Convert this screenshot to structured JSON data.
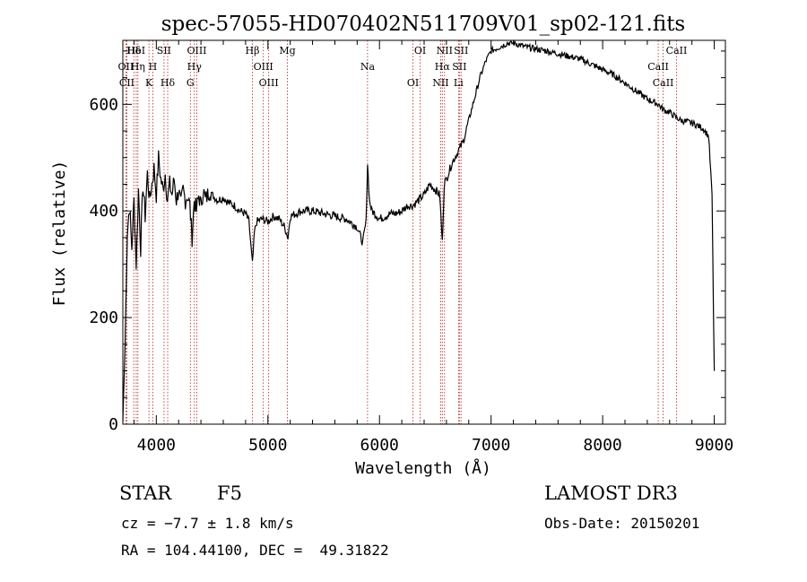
{
  "chart_data": {
    "type": "line",
    "title": "spec-57055-HD070402N511709V01_sp02-121.fits",
    "xlabel": "Wavelength (Å)",
    "ylabel": "Flux (relative)",
    "xlim": [
      3700,
      9100
    ],
    "ylim": [
      0,
      720
    ],
    "xticks": [
      4000,
      5000,
      6000,
      7000,
      8000,
      9000
    ],
    "yticks": [
      0,
      200,
      400,
      600
    ],
    "grid": false,
    "line_color": "#000000",
    "marker_color": "#b22222",
    "series": [
      {
        "x": [
          3700,
          3720,
          3740,
          3760,
          3780,
          3800,
          3820,
          3840,
          3860,
          3880,
          3900,
          3920,
          3940,
          3960,
          3980,
          4000,
          4020,
          4040,
          4060,
          4080,
          4100,
          4120,
          4140,
          4160,
          4180,
          4200,
          4220,
          4240,
          4260,
          4280,
          4300,
          4320,
          4340,
          4360,
          4380,
          4400,
          4420,
          4440,
          4460,
          4480,
          4500,
          4550,
          4600,
          4650,
          4700,
          4750,
          4800,
          4830,
          4861,
          4880,
          4900,
          4950,
          5000,
          5050,
          5100,
          5150,
          5180,
          5200,
          5250,
          5300,
          5400,
          5500,
          5600,
          5700,
          5800,
          5850,
          5880,
          5893,
          5910,
          5930,
          5960,
          6000,
          6050,
          6100,
          6150,
          6200,
          6250,
          6300,
          6350,
          6400,
          6450,
          6500,
          6540,
          6563,
          6580,
          6600,
          6650,
          6700,
          6750,
          6800,
          6850,
          6900,
          6950,
          7000,
          7050,
          7100,
          7150,
          7200,
          7250,
          7300,
          7400,
          7500,
          7600,
          7700,
          7800,
          7900,
          8000,
          8100,
          8200,
          8300,
          8400,
          8500,
          8542,
          8600,
          8662,
          8700,
          8800,
          8900,
          8950,
          8980,
          9000
        ],
        "values": [
          5,
          150,
          360,
          410,
          330,
          420,
          300,
          440,
          330,
          450,
          390,
          470,
          420,
          450,
          480,
          430,
          500,
          460,
          440,
          470,
          420,
          450,
          430,
          460,
          420,
          440,
          410,
          440,
          420,
          430,
          410,
          350,
          420,
          400,
          430,
          410,
          440,
          420,
          430,
          440,
          430,
          420,
          425,
          415,
          410,
          400,
          395,
          380,
          300,
          360,
          380,
          385,
          380,
          390,
          385,
          370,
          350,
          390,
          395,
          400,
          400,
          395,
          390,
          385,
          370,
          340,
          380,
          490,
          420,
          400,
          395,
          385,
          390,
          395,
          395,
          400,
          410,
          410,
          420,
          430,
          450,
          440,
          430,
          340,
          450,
          460,
          490,
          510,
          530,
          570,
          610,
          650,
          680,
          700,
          705,
          710,
          715,
          715,
          712,
          708,
          704,
          700,
          695,
          690,
          685,
          675,
          665,
          655,
          640,
          625,
          610,
          600,
          590,
          585,
          575,
          570,
          565,
          555,
          540,
          430,
          100
        ]
      }
    ],
    "lines": [
      {
        "label": "Hδ",
        "x": 3798
      },
      {
        "label": "OII",
        "x": 3727
      },
      {
        "label": "CII",
        "x": 3736
      },
      {
        "label": "HeI",
        "x": 3820
      },
      {
        "label": "Hη",
        "x": 3835
      },
      {
        "label": "K",
        "x": 3934
      },
      {
        "label": "SII",
        "x": 4069
      },
      {
        "label": "H",
        "x": 3969
      },
      {
        "label": "Hδ",
        "x": 4102
      },
      {
        "label": "OIII",
        "x": 4363
      },
      {
        "label": "Hγ",
        "x": 4341
      },
      {
        "label": "G",
        "x": 4305
      },
      {
        "label": "Hβ",
        "x": 4861
      },
      {
        "label": "OIII",
        "x": 4959
      },
      {
        "label": "OIII",
        "x": 5007
      },
      {
        "label": "Mg",
        "x": 5175
      },
      {
        "label": "Na",
        "x": 5893
      },
      {
        "label": "OI",
        "x": 6300
      },
      {
        "label": "OI",
        "x": 6364
      },
      {
        "label": "Hα",
        "x": 6563
      },
      {
        "label": "NII",
        "x": 6548
      },
      {
        "label": "NII",
        "x": 6583
      },
      {
        "label": "SII",
        "x": 6716
      },
      {
        "label": "Li",
        "x": 6708
      },
      {
        "label": "SII",
        "x": 6731
      },
      {
        "label": "CaII",
        "x": 8498
      },
      {
        "label": "CaII",
        "x": 8542
      },
      {
        "label": "CaII",
        "x": 8662
      }
    ]
  },
  "info": {
    "object_type": "STAR",
    "subclass": "F5",
    "survey": "LAMOST DR3",
    "cz": "cz = −7.7 ± 1.8 km/s",
    "obs_date": "Obs-Date: 20150201",
    "coords": "RA = 104.44100, DEC =  49.31822"
  }
}
